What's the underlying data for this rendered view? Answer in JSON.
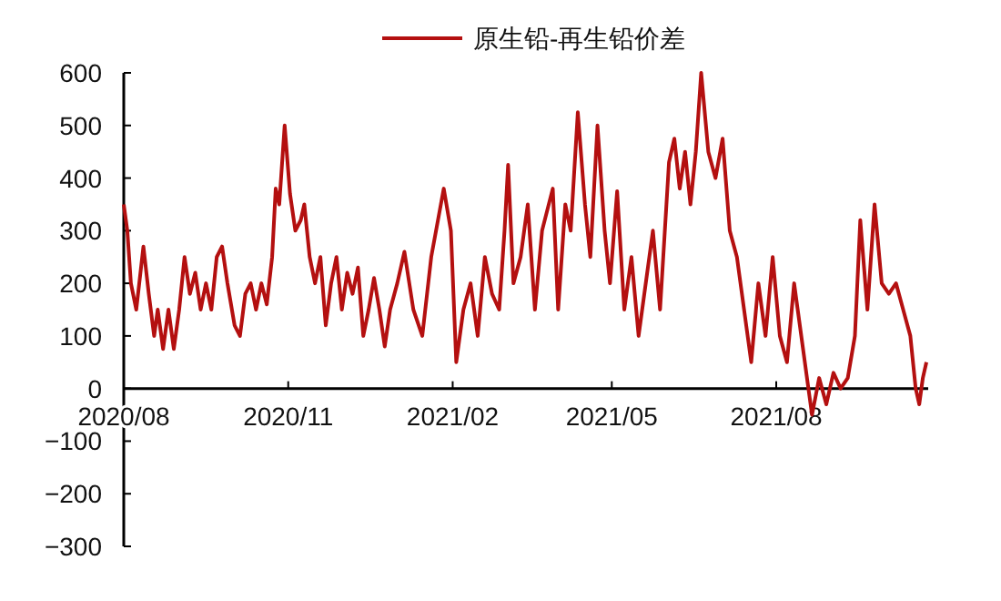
{
  "chart_data": {
    "type": "line",
    "legend": "top",
    "grid": false,
    "line_style": "solid",
    "marker": "none",
    "xlim": [
      "2020-08-01",
      "2021-10-25"
    ],
    "xticks": [
      {
        "value": "2020-08",
        "label": "2020/08"
      },
      {
        "value": "2020-11",
        "label": "2020/11"
      },
      {
        "value": "2021-02",
        "label": "2021/02"
      },
      {
        "value": "2021-05",
        "label": "2021/05"
      },
      {
        "value": "2021-08",
        "label": "2021/08"
      }
    ],
    "ylim": [
      -300,
      600
    ],
    "yticks": [
      -300,
      -200,
      -100,
      0,
      100,
      200,
      300,
      400,
      500,
      600
    ],
    "series": [
      {
        "name": "原生铅-再生铅价差",
        "color": "#b41010",
        "x": [
          "2020-08-01",
          "2020-08-03",
          "2020-08-05",
          "2020-08-08",
          "2020-08-12",
          "2020-08-15",
          "2020-08-18",
          "2020-08-20",
          "2020-08-23",
          "2020-08-26",
          "2020-08-29",
          "2020-09-01",
          "2020-09-04",
          "2020-09-07",
          "2020-09-10",
          "2020-09-13",
          "2020-09-16",
          "2020-09-19",
          "2020-09-22",
          "2020-09-25",
          "2020-09-28",
          "2020-10-02",
          "2020-10-05",
          "2020-10-08",
          "2020-10-11",
          "2020-10-14",
          "2020-10-17",
          "2020-10-20",
          "2020-10-23",
          "2020-10-25",
          "2020-10-27",
          "2020-10-30",
          "2020-11-02",
          "2020-11-05",
          "2020-11-08",
          "2020-11-10",
          "2020-11-13",
          "2020-11-16",
          "2020-11-19",
          "2020-11-22",
          "2020-11-25",
          "2020-11-28",
          "2020-12-01",
          "2020-12-04",
          "2020-12-07",
          "2020-12-10",
          "2020-12-13",
          "2020-12-16",
          "2020-12-19",
          "2020-12-22",
          "2020-12-25",
          "2020-12-28",
          "2021-01-01",
          "2021-01-05",
          "2021-01-10",
          "2021-01-15",
          "2021-01-20",
          "2021-01-27",
          "2021-01-31",
          "2021-02-03",
          "2021-02-07",
          "2021-02-11",
          "2021-02-15",
          "2021-02-19",
          "2021-02-23",
          "2021-02-27",
          "2021-03-02",
          "2021-03-04",
          "2021-03-07",
          "2021-03-11",
          "2021-03-15",
          "2021-03-19",
          "2021-03-23",
          "2021-03-29",
          "2021-04-01",
          "2021-04-05",
          "2021-04-08",
          "2021-04-12",
          "2021-04-16",
          "2021-04-19",
          "2021-04-23",
          "2021-04-27",
          "2021-04-30",
          "2021-05-04",
          "2021-05-08",
          "2021-05-12",
          "2021-05-16",
          "2021-05-20",
          "2021-05-24",
          "2021-05-28",
          "2021-06-02",
          "2021-06-05",
          "2021-06-08",
          "2021-06-11",
          "2021-06-14",
          "2021-06-17",
          "2021-06-20",
          "2021-06-24",
          "2021-06-28",
          "2021-07-02",
          "2021-07-06",
          "2021-07-10",
          "2021-07-14",
          "2021-07-18",
          "2021-07-22",
          "2021-07-26",
          "2021-07-30",
          "2021-08-03",
          "2021-08-07",
          "2021-08-11",
          "2021-08-15",
          "2021-08-19",
          "2021-08-21",
          "2021-08-25",
          "2021-08-29",
          "2021-09-02",
          "2021-09-06",
          "2021-09-10",
          "2021-09-14",
          "2021-09-17",
          "2021-09-21",
          "2021-09-25",
          "2021-09-29",
          "2021-10-03",
          "2021-10-07",
          "2021-10-11",
          "2021-10-15",
          "2021-10-18",
          "2021-10-20",
          "2021-10-22",
          "2021-10-24"
        ],
        "values": [
          350,
          300,
          200,
          150,
          270,
          180,
          100,
          150,
          75,
          150,
          75,
          150,
          250,
          180,
          220,
          150,
          200,
          150,
          250,
          270,
          200,
          120,
          100,
          180,
          200,
          150,
          200,
          160,
          250,
          380,
          350,
          500,
          370,
          300,
          320,
          350,
          250,
          200,
          250,
          120,
          200,
          250,
          150,
          220,
          180,
          230,
          100,
          150,
          210,
          150,
          80,
          150,
          200,
          260,
          150,
          100,
          250,
          380,
          300,
          50,
          150,
          200,
          100,
          250,
          180,
          150,
          300,
          425,
          200,
          250,
          350,
          150,
          300,
          380,
          150,
          350,
          300,
          525,
          350,
          250,
          500,
          300,
          200,
          375,
          150,
          250,
          100,
          200,
          300,
          150,
          430,
          475,
          380,
          450,
          350,
          450,
          600,
          450,
          400,
          475,
          300,
          250,
          150,
          50,
          200,
          100,
          250,
          100,
          50,
          200,
          100,
          0,
          -50,
          20,
          -30,
          30,
          0,
          20,
          100,
          320,
          150,
          350,
          200,
          180,
          200,
          150,
          100,
          0,
          -30,
          20,
          50
        ]
      }
    ]
  }
}
